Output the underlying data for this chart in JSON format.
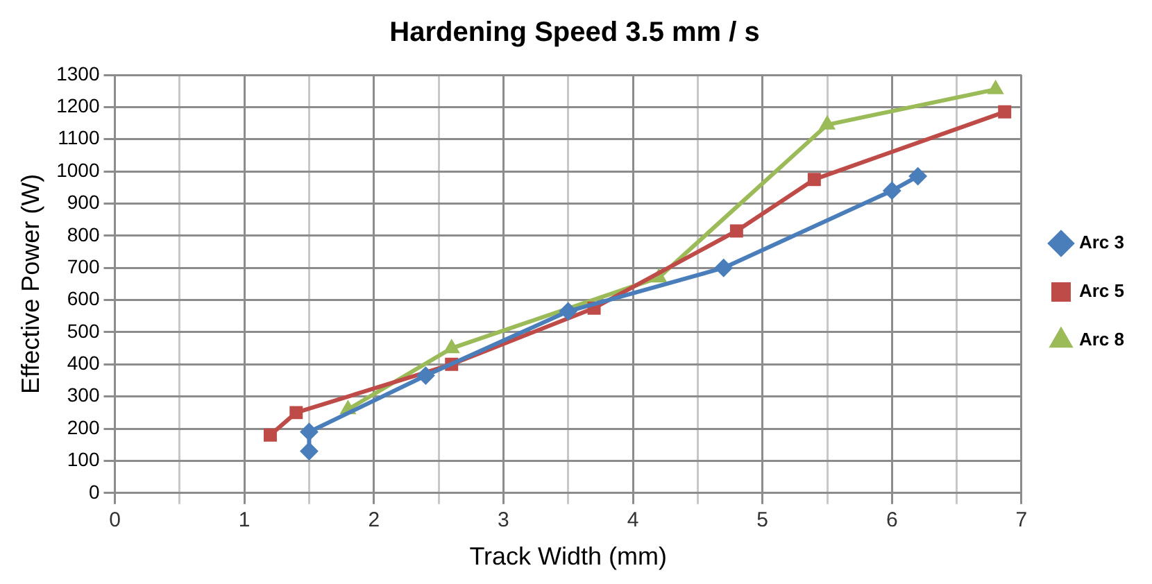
{
  "chart_data": {
    "type": "line",
    "title": "Hardening Speed 3.5 mm / s",
    "xlabel": "Track Width (mm)",
    "ylabel": "Effective Power (W)",
    "xlim": [
      0,
      7
    ],
    "xticks": [
      0,
      {
        "value": 0.5,
        "label": null
      },
      1,
      {
        "value": 1.5,
        "label": null
      },
      2,
      {
        "value": 2.5,
        "label": null
      },
      3,
      {
        "value": 3.5,
        "label": null
      },
      4,
      {
        "value": 4.5,
        "label": null
      },
      5,
      {
        "value": 5.5,
        "label": null
      },
      6,
      {
        "value": 6.5,
        "label": null
      },
      7
    ],
    "ylim": [
      0,
      1300
    ],
    "yticks": [
      0,
      100,
      200,
      300,
      400,
      500,
      600,
      700,
      800,
      900,
      1000,
      1100,
      1200,
      1300
    ],
    "grid": true,
    "legend": "right",
    "line_style": "solid",
    "series": [
      {
        "name": "Arc 3",
        "color": "#4a7ebb",
        "marker": "diamond",
        "x": [
          1.5,
          1.5,
          2.4,
          3.5,
          4.7,
          6.0,
          6.2
        ],
        "values": [
          130,
          190,
          365,
          565,
          700,
          940,
          985
        ]
      },
      {
        "name": "Arc 5",
        "color": "#be4b48",
        "marker": "square",
        "x": [
          1.2,
          1.4,
          2.6,
          3.7,
          4.8,
          5.4,
          6.87
        ],
        "values": [
          180,
          250,
          400,
          575,
          815,
          975,
          1185
        ]
      },
      {
        "name": "Arc 8",
        "color": "#9bbb59",
        "marker": "triangle",
        "x": [
          1.8,
          2.6,
          4.2,
          5.5,
          6.8
        ],
        "values": [
          260,
          450,
          670,
          1145,
          1255
        ]
      }
    ]
  }
}
